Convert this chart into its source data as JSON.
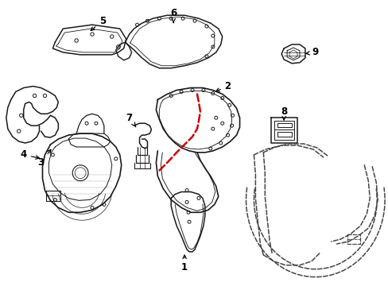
{
  "bg_color": "#ffffff",
  "line_color": "#1a1a1a",
  "red_color": "#cc0000",
  "dash_color": "#444444"
}
